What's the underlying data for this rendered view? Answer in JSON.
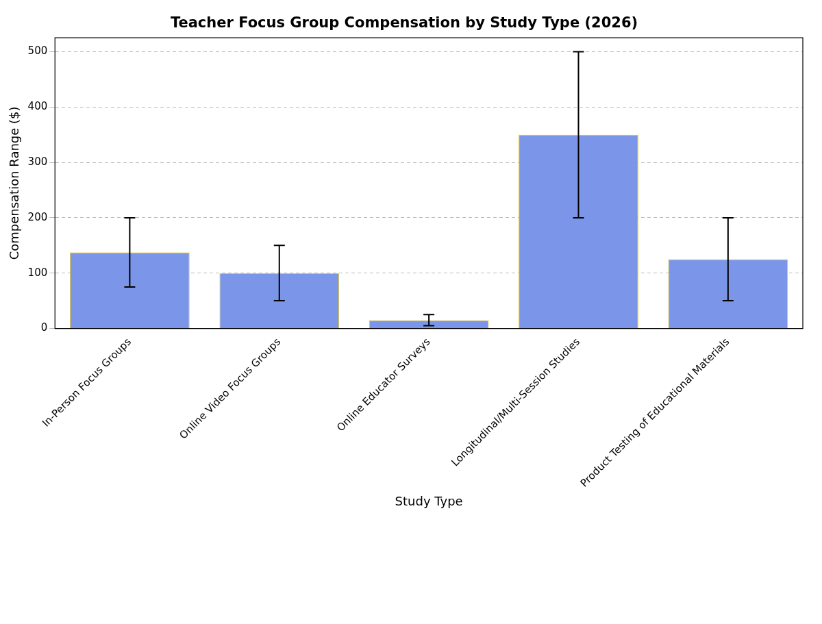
{
  "chart_data": {
    "type": "bar",
    "title": "Teacher Focus Group Compensation by Study Type (2026)",
    "xlabel": "Study Type",
    "ylabel": "Compensation Range ($)",
    "categories": [
      "In-Person Focus Groups",
      "Online Video Focus Groups",
      "Online Educator Surveys",
      "Longitudinal/Multi-Session Studies",
      "Product Testing of Educational Materials"
    ],
    "values": [
      137.5,
      100,
      15,
      350,
      125
    ],
    "errors": [
      [
        75,
        200
      ],
      [
        50,
        150
      ],
      [
        5,
        25
      ],
      [
        200,
        500
      ],
      [
        50,
        200
      ]
    ],
    "color": "#7b96e8",
    "ylim": [
      0,
      525
    ],
    "yticks": [
      0,
      100,
      200,
      300,
      400,
      500
    ],
    "grid": "y"
  }
}
